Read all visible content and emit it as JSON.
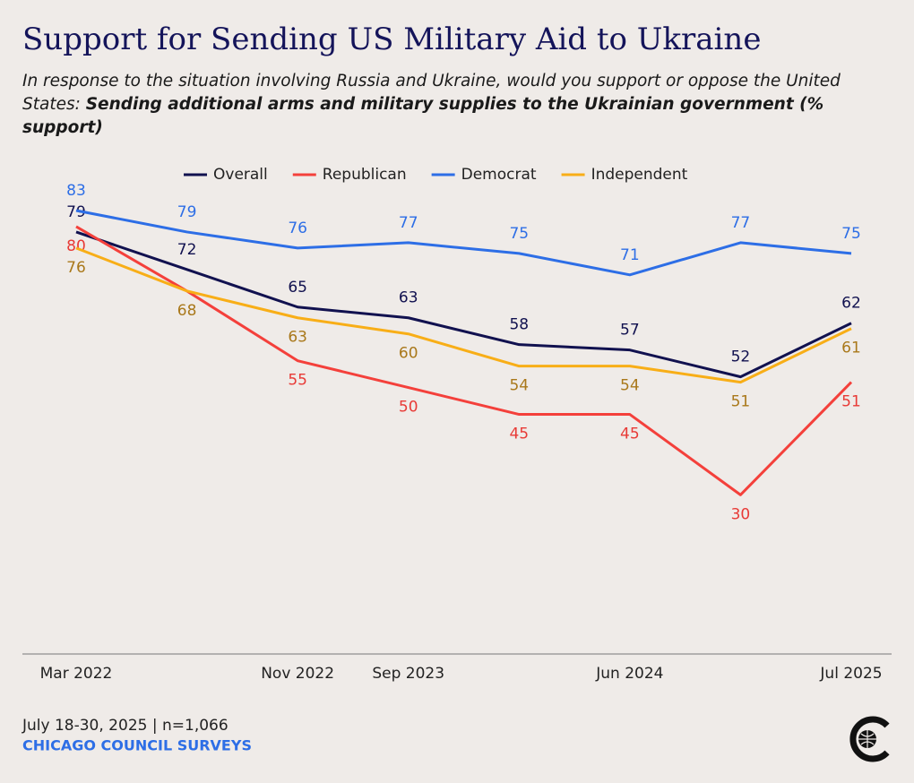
{
  "chart_data": {
    "type": "line",
    "title": "Support for Sending US Military Aid to Ukraine",
    "subtitle_lead": "In response to the situation involving Russia and Ukraine, would you support or oppose the United States:",
    "subtitle_bold": "Sending additional arms and military supplies to the Ukrainian government (% support)",
    "categories": [
      "Mar 2022",
      null,
      "Nov 2022",
      "Sep 2023",
      null,
      "Jun 2024",
      null,
      "Jul 2025"
    ],
    "ylim": [
      0,
      85
    ],
    "legend": "top",
    "series": [
      {
        "name": "Overall",
        "color": "#11114f",
        "label_color": "#11114f",
        "label_side": "above",
        "values": [
          79,
          72,
          65,
          63,
          58,
          57,
          52,
          62
        ]
      },
      {
        "name": "Republican",
        "color": "#f4403b",
        "label_color": "#e83a36",
        "label_side": "below",
        "values": [
          80,
          68,
          55,
          50,
          45,
          45,
          30,
          51
        ],
        "value_labels": [
          "80",
          null,
          "55",
          "50",
          "45",
          "45",
          "30",
          "51"
        ]
      },
      {
        "name": "Democrat",
        "color": "#2d6ee6",
        "label_color": "#2d6ee6",
        "label_side": "above",
        "values": [
          83,
          79,
          76,
          77,
          75,
          71,
          77,
          75
        ]
      },
      {
        "name": "Independent",
        "color": "#f8ae17",
        "label_color": "#a9781a",
        "label_side": "below",
        "values": [
          76,
          68,
          63,
          60,
          54,
          54,
          51,
          61
        ]
      }
    ],
    "source": "July 18-30, 2025 | n=1,066",
    "publisher": "CHICAGO COUNCIL SURVEYS"
  }
}
